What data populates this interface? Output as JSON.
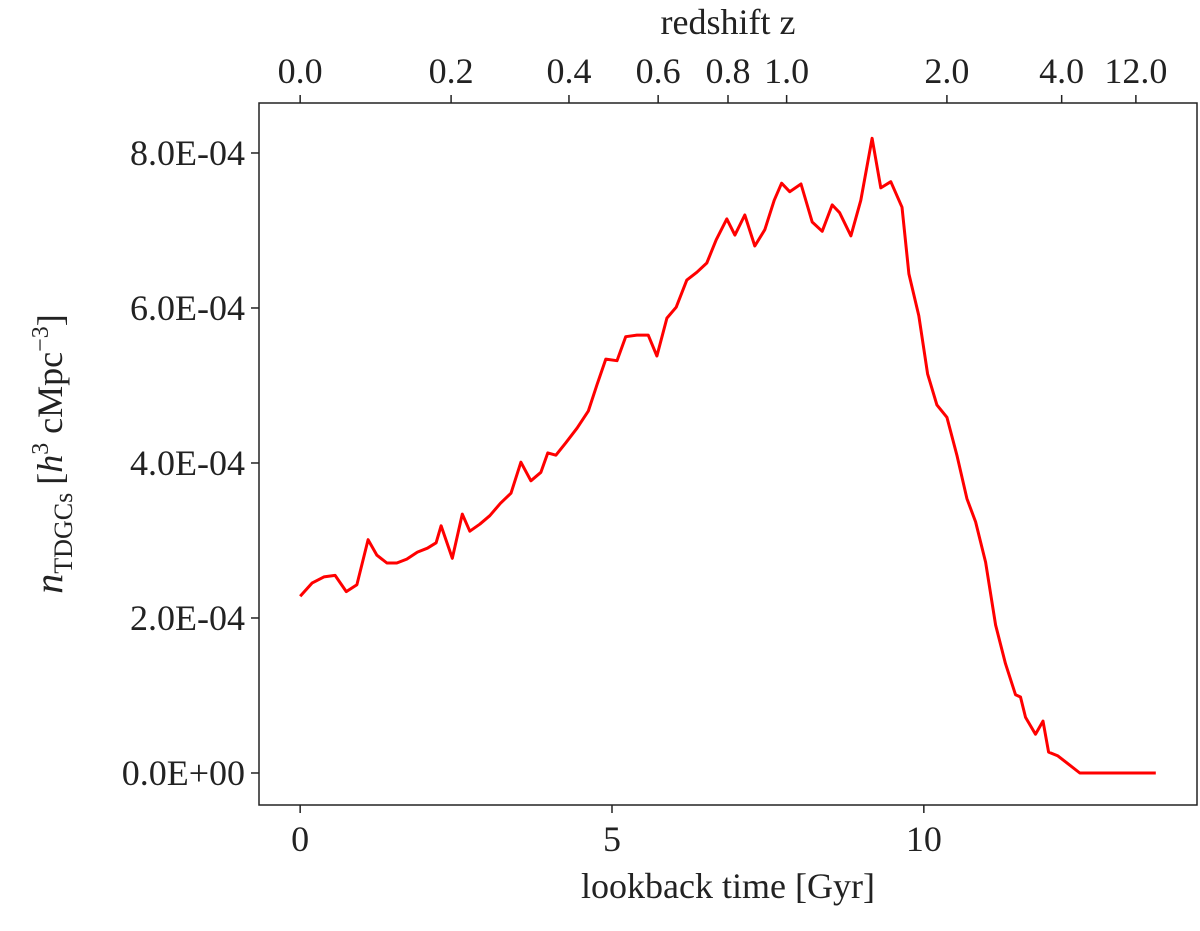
{
  "chart_data": {
    "type": "line",
    "xlabel": "lookback time [Gyr]",
    "x2label": "redshift z",
    "ylabel_parts": [
      "n",
      "TDGCs",
      "[",
      "h",
      "3",
      " cMpc",
      "−3",
      "]"
    ],
    "color": "#ff0000",
    "xlim": [
      -0.66,
      14.38
    ],
    "xticks": [
      0,
      5,
      10
    ],
    "x2ticks": [
      {
        "value": 0,
        "label": "0.0"
      },
      {
        "value": 2.42,
        "label": "0.2"
      },
      {
        "value": 4.31,
        "label": "0.4"
      },
      {
        "value": 5.74,
        "label": "0.6"
      },
      {
        "value": 6.86,
        "label": "0.8"
      },
      {
        "value": 7.8,
        "label": "1.0"
      },
      {
        "value": 10.37,
        "label": "2.0"
      },
      {
        "value": 12.21,
        "label": "4.0"
      },
      {
        "value": 13.4,
        "label": "12.0"
      }
    ],
    "ylim": [
      -4.13e-05,
      0.0008645
    ],
    "yticks": [
      {
        "value": 0,
        "label": "0.0E+00"
      },
      {
        "value": 0.0002,
        "label": "2.0E-04"
      },
      {
        "value": 0.0004,
        "label": "4.0E-04"
      },
      {
        "value": 0.0006,
        "label": "6.0E-04"
      },
      {
        "value": 0.0008,
        "label": "8.0E-04"
      }
    ],
    "x": [
      0,
      0.19,
      0.38,
      0.56,
      0.74,
      0.91,
      1.09,
      1.23,
      1.39,
      1.55,
      1.71,
      1.88,
      2.04,
      2.18,
      2.26,
      2.44,
      2.6,
      2.72,
      2.88,
      3.04,
      3.21,
      3.38,
      3.54,
      3.7,
      3.86,
      3.97,
      4.1,
      4.26,
      4.44,
      4.62,
      4.76,
      4.9,
      5.08,
      5.22,
      5.4,
      5.58,
      5.72,
      5.88,
      6.03,
      6.2,
      6.36,
      6.52,
      6.67,
      6.84,
      6.97,
      7.13,
      7.29,
      7.45,
      7.6,
      7.72,
      7.85,
      8.03,
      8.21,
      8.37,
      8.53,
      8.65,
      8.83,
      8.99,
      9.17,
      9.31,
      9.47,
      9.65,
      9.76,
      9.92,
      10.06,
      10.21,
      10.37,
      10.53,
      10.69,
      10.83,
      10.99,
      11.15,
      11.31,
      11.47,
      11.55,
      11.63,
      11.79,
      11.91,
      12.0,
      12.15,
      12.31,
      12.5,
      13.72
    ],
    "values": [
      0.000228,
      0.000245,
      0.000253,
      0.000255,
      0.000234,
      0.000243,
      0.000301,
      0.000281,
      0.000271,
      0.000271,
      0.000276,
      0.000285,
      0.00029,
      0.000297,
      0.000319,
      0.000277,
      0.000334,
      0.000312,
      0.000321,
      0.000332,
      0.000348,
      0.000361,
      0.000401,
      0.000377,
      0.000388,
      0.000413,
      0.00041,
      0.000426,
      0.000445,
      0.000467,
      0.000501,
      0.000534,
      0.000532,
      0.000563,
      0.000565,
      0.000565,
      0.000538,
      0.000587,
      0.000601,
      0.000636,
      0.000646,
      0.000658,
      0.000688,
      0.000715,
      0.000694,
      0.00072,
      0.00068,
      0.000701,
      0.000739,
      0.000761,
      0.00075,
      0.00076,
      0.000711,
      0.000699,
      0.000733,
      0.000723,
      0.000693,
      0.000739,
      0.000819,
      0.000755,
      0.000763,
      0.00073,
      0.000644,
      0.00059,
      0.000515,
      0.000475,
      0.000459,
      0.00041,
      0.000354,
      0.000324,
      0.000272,
      0.000191,
      0.000141,
      0.000101,
      9.8e-05,
      7.2e-05,
      5e-05,
      6.7e-05,
      2.7e-05,
      2.2e-05,
      1.2e-05,
      0,
      0
    ]
  }
}
